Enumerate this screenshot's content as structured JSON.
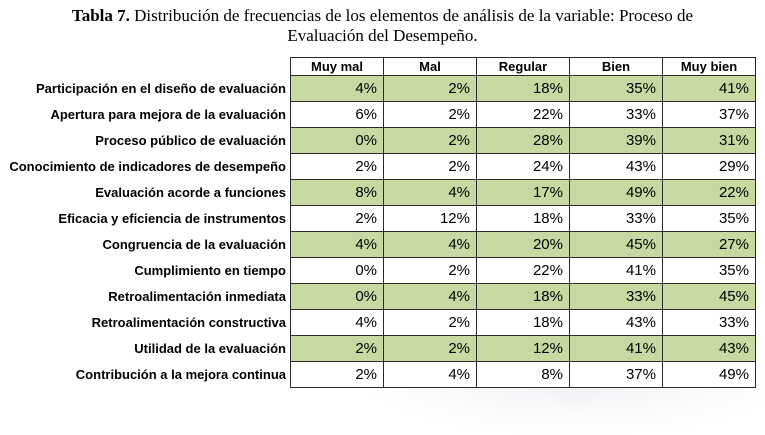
{
  "caption": {
    "label": "Tabla 7.",
    "text": "Distribución de frecuencias de los elementos de análisis de la variable: Proceso de",
    "text2": "Evaluación del Desempeño."
  },
  "table": {
    "columns": [
      "Muy mal",
      "Mal",
      "Regular",
      "Bien",
      "Muy bien"
    ],
    "rows": [
      {
        "label": "Participación en el diseño de evaluación",
        "values": [
          "4%",
          "2%",
          "18%",
          "35%",
          "41%"
        ],
        "shaded": true
      },
      {
        "label": "Apertura para mejora de la evaluación",
        "values": [
          "6%",
          "2%",
          "22%",
          "33%",
          "37%"
        ],
        "shaded": false
      },
      {
        "label": "Proceso público de evaluación",
        "values": [
          "0%",
          "2%",
          "28%",
          "39%",
          "31%"
        ],
        "shaded": true
      },
      {
        "label": "Conocimiento de indicadores de desempeño",
        "values": [
          "2%",
          "2%",
          "24%",
          "43%",
          "29%"
        ],
        "shaded": false
      },
      {
        "label": "Evaluación acorde a funciones",
        "values": [
          "8%",
          "4%",
          "17%",
          "49%",
          "22%"
        ],
        "shaded": true
      },
      {
        "label": "Eficacia y eficiencia de instrumentos",
        "values": [
          "2%",
          "12%",
          "18%",
          "33%",
          "35%"
        ],
        "shaded": false
      },
      {
        "label": "Congruencia de la evaluación",
        "values": [
          "4%",
          "4%",
          "20%",
          "45%",
          "27%"
        ],
        "shaded": true
      },
      {
        "label": "Cumplimiento en tiempo",
        "values": [
          "0%",
          "2%",
          "22%",
          "41%",
          "35%"
        ],
        "shaded": false
      },
      {
        "label": "Retroalimentación inmediata",
        "values": [
          "0%",
          "4%",
          "18%",
          "33%",
          "45%"
        ],
        "shaded": true
      },
      {
        "label": "Retroalimentación constructiva",
        "values": [
          "4%",
          "2%",
          "18%",
          "43%",
          "33%"
        ],
        "shaded": false
      },
      {
        "label": "Utilidad de la evaluación",
        "values": [
          "2%",
          "2%",
          "12%",
          "41%",
          "43%"
        ],
        "shaded": true
      },
      {
        "label": "Contribución a la mejora continua",
        "values": [
          "2%",
          "4%",
          "8%",
          "37%",
          "49%"
        ],
        "shaded": false
      }
    ]
  },
  "colors": {
    "shaded_row": "#c5d9a0",
    "border": "#2a2a2a"
  }
}
